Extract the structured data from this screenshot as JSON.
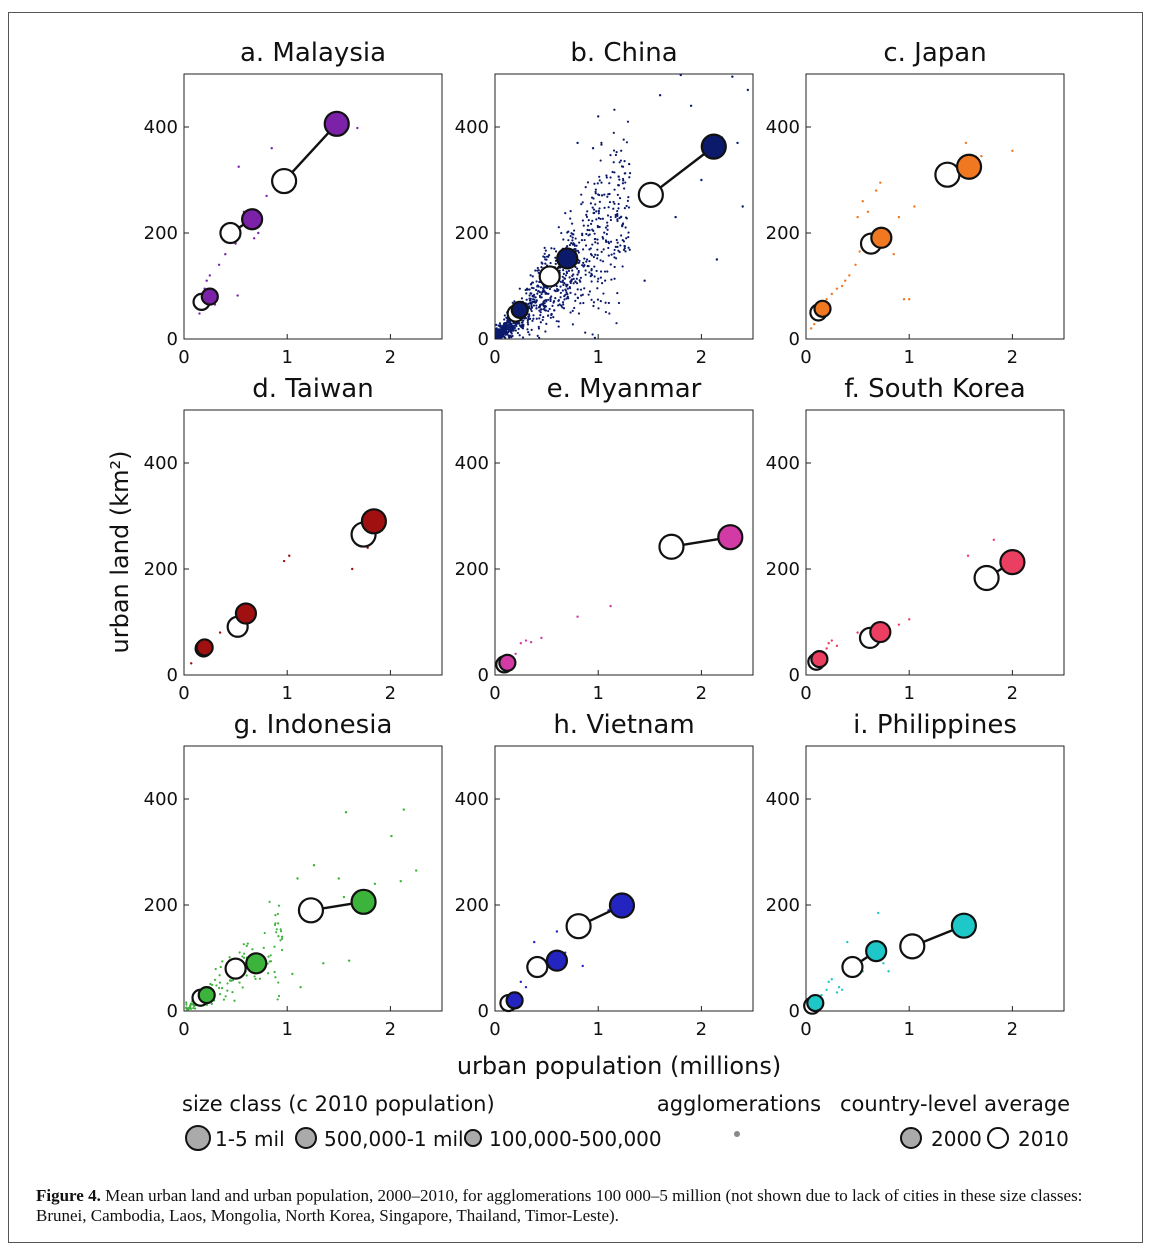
{
  "figure": {
    "caption_label": "Figure 4.",
    "caption_text": "Mean urban land and urban population, 2000–2010, for agglomerations 100 000–5 million (not shown due to lack of cities in these size classes: Brunei, Cambodia, Laos, Mongolia, North Korea, Singapore, Thailand, Timor-Leste).",
    "xlabel": "urban population (millions)",
    "ylabel": "urban land (km²)",
    "legend": {
      "size_class_title": "size class (c 2010 population)",
      "size_classes": [
        "1-5 mil",
        "500,000-1 mil",
        "100,000-500,000"
      ],
      "agglomerations_title": "agglomerations",
      "average_title": "country-level average",
      "years": [
        "2000",
        "2010"
      ]
    }
  },
  "chart_data": [
    {
      "type": "scatter",
      "title": "a. Malaysia",
      "color": "#7b22a8",
      "xlim": [
        0,
        2.5
      ],
      "ylim": [
        0,
        500
      ],
      "xticks": [
        0,
        1,
        2
      ],
      "yticks": [
        0,
        200,
        400
      ],
      "pairs": [
        {
          "x2000": 0.17,
          "y2000": 70,
          "x2010": 0.25,
          "y2010": 80
        },
        {
          "x2000": 0.45,
          "y2000": 200,
          "x2010": 0.66,
          "y2010": 226
        },
        {
          "x2000": 0.97,
          "y2000": 298,
          "x2010": 1.48,
          "y2010": 406
        }
      ],
      "agglomerations": [
        [
          0.12,
          60
        ],
        [
          0.15,
          48
        ],
        [
          0.18,
          55
        ],
        [
          0.2,
          95
        ],
        [
          0.22,
          110
        ],
        [
          0.25,
          120
        ],
        [
          0.3,
          65
        ],
        [
          0.34,
          140
        ],
        [
          0.4,
          160
        ],
        [
          0.5,
          180
        ],
        [
          0.52,
          82
        ],
        [
          0.53,
          325
        ],
        [
          0.58,
          240
        ],
        [
          0.68,
          190
        ],
        [
          0.72,
          200
        ],
        [
          0.8,
          270
        ],
        [
          0.85,
          360
        ],
        [
          1.55,
          405
        ],
        [
          1.68,
          398
        ]
      ]
    },
    {
      "type": "scatter",
      "title": "b. China",
      "color": "#0b1a6b",
      "xlim": [
        0,
        2.5
      ],
      "ylim": [
        0,
        500
      ],
      "xticks": [
        0,
        1,
        2
      ],
      "yticks": [
        0,
        200,
        400
      ],
      "pairs": [
        {
          "x2000": 0.2,
          "y2000": 48,
          "x2010": 0.24,
          "y2010": 55
        },
        {
          "x2000": 0.53,
          "y2000": 118,
          "x2010": 0.7,
          "y2010": 152
        },
        {
          "x2000": 1.51,
          "y2000": 272,
          "x2010": 2.12,
          "y2010": 363
        }
      ],
      "agglomerations": [
        [
          1.8,
          498
        ],
        [
          2.3,
          495
        ],
        [
          2.45,
          470
        ],
        [
          2.2,
          380
        ],
        [
          1.9,
          440
        ],
        [
          1.6,
          460
        ],
        [
          2.0,
          300
        ],
        [
          2.15,
          150
        ],
        [
          1.45,
          110
        ],
        [
          1.0,
          420
        ],
        [
          0.8,
          370
        ],
        [
          1.3,
          330
        ],
        [
          0.95,
          360
        ],
        [
          2.4,
          250
        ],
        [
          1.75,
          230
        ],
        [
          1.2,
          290
        ],
        [
          2.35,
          370
        ]
      ]
    },
    {
      "type": "scatter",
      "title": "c. Japan",
      "color": "#f07820",
      "xlim": [
        0,
        2.5
      ],
      "ylim": [
        0,
        500
      ],
      "xticks": [
        0,
        1,
        2
      ],
      "yticks": [
        0,
        200,
        400
      ],
      "pairs": [
        {
          "x2000": 0.12,
          "y2000": 50,
          "x2010": 0.16,
          "y2010": 57
        },
        {
          "x2000": 0.63,
          "y2000": 180,
          "x2010": 0.73,
          "y2010": 191
        },
        {
          "x2000": 1.37,
          "y2000": 310,
          "x2010": 1.58,
          "y2010": 325
        }
      ],
      "agglomerations": [
        [
          0.05,
          20
        ],
        [
          0.08,
          28
        ],
        [
          0.1,
          40
        ],
        [
          0.15,
          60
        ],
        [
          0.2,
          75
        ],
        [
          0.25,
          85
        ],
        [
          0.3,
          95
        ],
        [
          0.35,
          100
        ],
        [
          0.38,
          110
        ],
        [
          0.42,
          120
        ],
        [
          0.48,
          140
        ],
        [
          0.52,
          165
        ],
        [
          0.5,
          230
        ],
        [
          0.55,
          260
        ],
        [
          0.6,
          240
        ],
        [
          0.68,
          280
        ],
        [
          0.72,
          295
        ],
        [
          0.8,
          180
        ],
        [
          0.85,
          160
        ],
        [
          0.9,
          230
        ],
        [
          0.95,
          75
        ],
        [
          1.0,
          75
        ],
        [
          1.05,
          250
        ],
        [
          1.55,
          370
        ],
        [
          1.7,
          345
        ],
        [
          2.0,
          355
        ]
      ]
    },
    {
      "type": "scatter",
      "title": "d. Taiwan",
      "color": "#a01010",
      "xlim": [
        0,
        2.5
      ],
      "ylim": [
        0,
        500
      ],
      "xticks": [
        0,
        1,
        2
      ],
      "yticks": [
        0,
        200,
        400
      ],
      "pairs": [
        {
          "x2000": 0.19,
          "y2000": 50,
          "x2010": 0.2,
          "y2010": 52
        },
        {
          "x2000": 0.52,
          "y2000": 91,
          "x2010": 0.6,
          "y2010": 116
        },
        {
          "x2000": 1.74,
          "y2000": 265,
          "x2010": 1.84,
          "y2010": 290
        }
      ],
      "agglomerations": [
        [
          0.07,
          22
        ],
        [
          0.35,
          80
        ],
        [
          0.45,
          95
        ],
        [
          0.97,
          215
        ],
        [
          1.02,
          225
        ],
        [
          1.63,
          200
        ],
        [
          1.78,
          240
        ],
        [
          1.9,
          285
        ]
      ]
    },
    {
      "type": "scatter",
      "title": "e. Myanmar",
      "color": "#d23aa5",
      "xlim": [
        0,
        2.5
      ],
      "ylim": [
        0,
        500
      ],
      "xticks": [
        0,
        1,
        2
      ],
      "yticks": [
        0,
        200,
        400
      ],
      "pairs": [
        {
          "x2000": 0.09,
          "y2000": 20,
          "x2010": 0.12,
          "y2010": 23
        },
        {
          "x2000": 1.71,
          "y2000": 242,
          "x2010": 2.28,
          "y2010": 260
        }
      ],
      "agglomerations": [
        [
          0.05,
          15
        ],
        [
          0.2,
          40
        ],
        [
          0.25,
          60
        ],
        [
          0.3,
          65
        ],
        [
          0.35,
          62
        ],
        [
          0.45,
          70
        ],
        [
          0.8,
          110
        ],
        [
          1.12,
          130
        ],
        [
          1.8,
          248
        ],
        [
          2.2,
          255
        ]
      ]
    },
    {
      "type": "scatter",
      "title": "f. South Korea",
      "color": "#ea3f61",
      "xlim": [
        0,
        2.5
      ],
      "ylim": [
        0,
        500
      ],
      "xticks": [
        0,
        1,
        2
      ],
      "yticks": [
        0,
        200,
        400
      ],
      "pairs": [
        {
          "x2000": 0.1,
          "y2000": 25,
          "x2010": 0.13,
          "y2010": 30
        },
        {
          "x2000": 0.62,
          "y2000": 70,
          "x2010": 0.72,
          "y2010": 81
        },
        {
          "x2000": 1.75,
          "y2000": 183,
          "x2010": 2.0,
          "y2010": 213
        }
      ],
      "agglomerations": [
        [
          0.05,
          15
        ],
        [
          0.15,
          35
        ],
        [
          0.2,
          50
        ],
        [
          0.22,
          60
        ],
        [
          0.25,
          65
        ],
        [
          0.3,
          55
        ],
        [
          0.5,
          80
        ],
        [
          0.6,
          85
        ],
        [
          0.8,
          90
        ],
        [
          0.9,
          95
        ],
        [
          1.0,
          105
        ],
        [
          1.57,
          225
        ],
        [
          1.82,
          255
        ]
      ]
    },
    {
      "type": "scatter",
      "title": "g. Indonesia",
      "color": "#3cb33a",
      "xlim": [
        0,
        2.5
      ],
      "ylim": [
        0,
        500
      ],
      "xticks": [
        0,
        1,
        2
      ],
      "yticks": [
        0,
        200,
        400
      ],
      "pairs": [
        {
          "x2000": 0.16,
          "y2000": 25,
          "x2010": 0.22,
          "y2010": 30
        },
        {
          "x2000": 0.5,
          "y2000": 80,
          "x2010": 0.7,
          "y2010": 90
        },
        {
          "x2000": 1.23,
          "y2000": 190,
          "x2010": 1.74,
          "y2010": 206
        }
      ],
      "agglomerations": [
        [
          1.57,
          375
        ],
        [
          2.13,
          380
        ],
        [
          2.01,
          330
        ],
        [
          2.25,
          265
        ],
        [
          1.26,
          275
        ],
        [
          1.1,
          250
        ],
        [
          1.5,
          250
        ],
        [
          1.55,
          215
        ],
        [
          2.1,
          245
        ],
        [
          1.6,
          95
        ],
        [
          1.35,
          90
        ],
        [
          1.13,
          45
        ],
        [
          1.85,
          240
        ],
        [
          0.95,
          140
        ],
        [
          1.05,
          70
        ]
      ]
    },
    {
      "type": "scatter",
      "title": "h. Vietnam",
      "color": "#2424c0",
      "xlim": [
        0,
        2.5
      ],
      "ylim": [
        0,
        500
      ],
      "xticks": [
        0,
        1,
        2
      ],
      "yticks": [
        0,
        200,
        400
      ],
      "pairs": [
        {
          "x2000": 0.13,
          "y2000": 15,
          "x2010": 0.19,
          "y2010": 20
        },
        {
          "x2000": 0.41,
          "y2000": 83,
          "x2010": 0.6,
          "y2010": 95
        },
        {
          "x2000": 0.81,
          "y2000": 160,
          "x2010": 1.23,
          "y2010": 199
        }
      ],
      "agglomerations": [
        [
          0.1,
          10
        ],
        [
          0.2,
          30
        ],
        [
          0.25,
          55
        ],
        [
          0.3,
          45
        ],
        [
          0.38,
          130
        ],
        [
          0.45,
          70
        ],
        [
          0.52,
          100
        ],
        [
          0.6,
          150
        ],
        [
          0.68,
          110
        ],
        [
          0.85,
          85
        ],
        [
          1.1,
          190
        ],
        [
          1.3,
          205
        ]
      ]
    },
    {
      "type": "scatter",
      "title": "i. Philippines",
      "color": "#1fc8c8",
      "xlim": [
        0,
        2.5
      ],
      "ylim": [
        0,
        500
      ],
      "xticks": [
        0,
        1,
        2
      ],
      "yticks": [
        0,
        200,
        400
      ],
      "pairs": [
        {
          "x2000": 0.06,
          "y2000": 10,
          "x2010": 0.09,
          "y2010": 15
        },
        {
          "x2000": 0.45,
          "y2000": 83,
          "x2010": 0.68,
          "y2010": 113
        },
        {
          "x2000": 1.03,
          "y2000": 122,
          "x2010": 1.53,
          "y2010": 161
        }
      ],
      "agglomerations": [
        [
          0.05,
          5
        ],
        [
          0.1,
          20
        ],
        [
          0.15,
          30
        ],
        [
          0.2,
          40
        ],
        [
          0.22,
          55
        ],
        [
          0.25,
          60
        ],
        [
          0.3,
          35
        ],
        [
          0.32,
          45
        ],
        [
          0.35,
          40
        ],
        [
          0.4,
          130
        ],
        [
          0.5,
          95
        ],
        [
          0.55,
          75
        ],
        [
          0.6,
          120
        ],
        [
          0.7,
          185
        ],
        [
          0.75,
          90
        ],
        [
          0.8,
          75
        ],
        [
          1.6,
          170
        ]
      ]
    }
  ]
}
